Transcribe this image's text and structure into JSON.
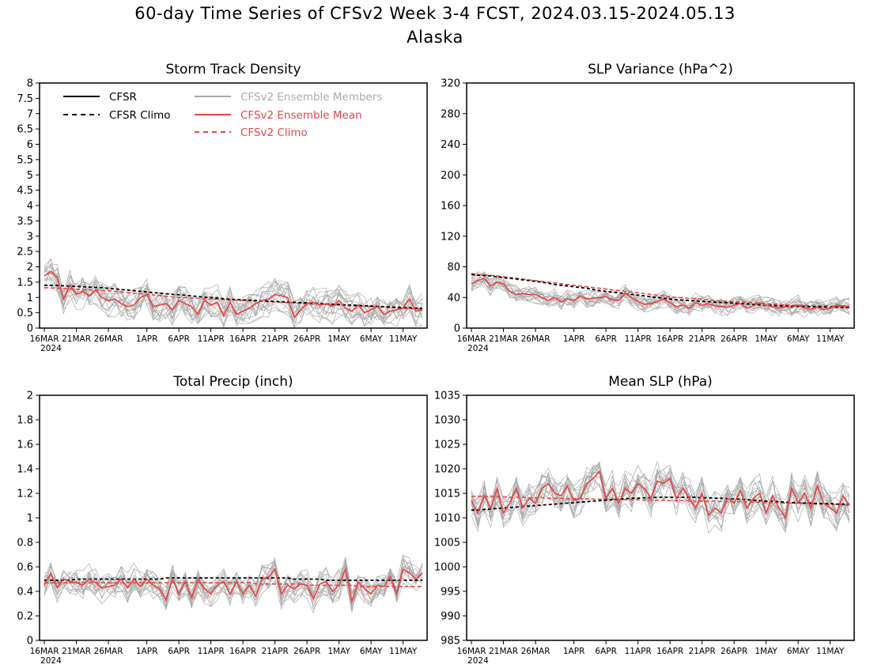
{
  "title_line1": "60-day Time Series of CFSv2 Week 3-4 FCST, 2024.03.15-2024.05.13",
  "title_line2": "Alaska",
  "x_axis": {
    "tick_labels": [
      "16MAR",
      "21MAR",
      "26MAR",
      "1APR",
      "6APR",
      "11APR",
      "16APR",
      "21APR",
      "26APR",
      "1MAY",
      "6MAY",
      "11MAY"
    ],
    "tick_days": [
      1,
      6,
      11,
      17,
      22,
      27,
      32,
      37,
      42,
      47,
      52,
      57
    ],
    "year_label": "2024",
    "n_days": 60
  },
  "legend": {
    "cfsr": "CFSR",
    "cfsr_climo": "CFSR Climo",
    "members": "CFSv2 Ensemble Members",
    "ens_mean": "CFSv2 Ensemble Mean",
    "cfsv2_climo": "CFSv2 Climo"
  },
  "colors": {
    "cfsr": "#000000",
    "cfsr_climo": "#000000",
    "members": "#aaaaaa",
    "ens_mean": "#e84545",
    "cfsv2_climo": "#e84545"
  },
  "chart_data": [
    {
      "type": "line",
      "title": "Storm Track Density",
      "ylim": [
        0,
        8
      ],
      "yticks": [
        0,
        0.5,
        1,
        1.5,
        2,
        2.5,
        3,
        3.5,
        4,
        4.5,
        5,
        5.5,
        6,
        6.5,
        7,
        7.5,
        8
      ],
      "ytick_labels": [
        "0",
        "0.5",
        "1",
        "1.5",
        "2",
        "2.5",
        "3",
        "3.5",
        "4",
        "4.5",
        "5",
        "5.5",
        "6",
        "6.5",
        "7",
        "7.5",
        "8"
      ],
      "cfsr_climo": [
        1.4,
        1.4,
        1.39,
        1.38,
        1.37,
        1.36,
        1.35,
        1.34,
        1.33,
        1.32,
        1.3,
        1.28,
        1.26,
        1.24,
        1.22,
        1.2,
        1.18,
        1.16,
        1.14,
        1.12,
        1.1,
        1.09,
        1.07,
        1.05,
        1.03,
        1.01,
        1.0,
        0.98,
        0.96,
        0.94,
        0.93,
        0.92,
        0.91,
        0.9,
        0.89,
        0.88,
        0.87,
        0.86,
        0.85,
        0.84,
        0.83,
        0.82,
        0.81,
        0.8,
        0.79,
        0.78,
        0.77,
        0.76,
        0.75,
        0.74,
        0.73,
        0.72,
        0.71,
        0.7,
        0.69,
        0.68,
        0.67,
        0.66,
        0.65,
        0.64
      ],
      "cfsv2_climo": [
        1.32,
        1.31,
        1.3,
        1.29,
        1.28,
        1.27,
        1.26,
        1.25,
        1.24,
        1.23,
        1.22,
        1.2,
        1.18,
        1.16,
        1.14,
        1.12,
        1.1,
        1.08,
        1.06,
        1.04,
        1.02,
        1.0,
        0.99,
        0.98,
        0.97,
        0.96,
        0.95,
        0.94,
        0.93,
        0.92,
        0.91,
        0.9,
        0.89,
        0.88,
        0.87,
        0.86,
        0.85,
        0.84,
        0.83,
        0.82,
        0.81,
        0.8,
        0.79,
        0.78,
        0.77,
        0.76,
        0.75,
        0.74,
        0.73,
        0.72,
        0.71,
        0.7,
        0.69,
        0.68,
        0.67,
        0.66,
        0.65,
        0.64,
        0.63,
        0.62
      ],
      "ens_mean": [
        1.7,
        1.85,
        1.65,
        0.95,
        1.4,
        1.1,
        1.2,
        1.05,
        1.25,
        1.0,
        0.9,
        0.95,
        0.8,
        0.7,
        0.75,
        1.0,
        1.1,
        0.7,
        0.75,
        0.8,
        0.6,
        0.9,
        0.8,
        0.7,
        0.45,
        0.9,
        0.75,
        0.85,
        0.4,
        0.85,
        0.45,
        0.55,
        0.65,
        0.8,
        0.9,
        0.95,
        1.1,
        1.05,
        1.0,
        0.35,
        0.6,
        0.8,
        0.85,
        0.75,
        0.8,
        0.7,
        0.9,
        0.65,
        0.55,
        0.75,
        0.5,
        0.6,
        0.7,
        0.45,
        0.55,
        0.6,
        0.65,
        0.95,
        0.55,
        0.6
      ],
      "spread": 0.45
    },
    {
      "type": "line",
      "title": "SLP Variance (hPa^2)",
      "ylim": [
        0,
        320
      ],
      "yticks": [
        0,
        40,
        80,
        120,
        160,
        200,
        240,
        280,
        320
      ],
      "ytick_labels": [
        "0",
        "40",
        "80",
        "120",
        "160",
        "200",
        "240",
        "280",
        "320"
      ],
      "cfsr_climo": [
        70,
        69,
        68.5,
        68,
        67,
        66,
        65,
        64,
        63,
        62,
        61,
        60,
        58.5,
        57,
        56,
        55,
        54,
        53,
        52,
        50.5,
        49,
        48,
        47,
        46,
        45,
        44,
        43,
        42,
        41,
        40,
        39,
        38,
        37,
        36.5,
        36,
        35.5,
        35,
        34.5,
        34,
        33.5,
        33,
        32.5,
        32,
        31.5,
        31,
        30.5,
        30,
        29.5,
        29,
        28.8,
        28.6,
        28.4,
        28.2,
        28,
        27.8,
        27.6,
        27.4,
        27.2,
        27,
        27
      ],
      "cfsv2_climo": [
        71,
        70,
        69.5,
        69,
        68,
        67,
        66,
        65,
        64,
        63,
        62,
        61,
        60,
        59,
        58,
        57,
        56,
        55,
        54,
        53,
        52,
        51,
        50,
        49,
        48,
        47,
        46,
        45,
        44,
        43,
        42,
        41,
        40,
        39.5,
        39,
        38.5,
        38,
        37,
        36,
        35.5,
        35,
        34.5,
        34,
        33.5,
        33,
        32.5,
        32,
        31.5,
        31,
        30.5,
        30,
        29.8,
        29.6,
        29.4,
        29.2,
        29,
        28.8,
        28.6,
        28.4,
        28
      ],
      "ens_mean": [
        58,
        62,
        65,
        55,
        60,
        58,
        48,
        44,
        45,
        44,
        44,
        40,
        36,
        40,
        34,
        38,
        36,
        42,
        38,
        39,
        40,
        41,
        37,
        36,
        46,
        40,
        35,
        31,
        32,
        35,
        38,
        33,
        28,
        30,
        26,
        33,
        30,
        32,
        29,
        28,
        27,
        30,
        32,
        26,
        29,
        33,
        30,
        28,
        26,
        28,
        27,
        30,
        26,
        25,
        27,
        24,
        26,
        30,
        29,
        28
      ],
      "spread": 10
    },
    {
      "type": "line",
      "title": "Total Precip (inch)",
      "ylim": [
        0,
        2
      ],
      "yticks": [
        0,
        0.2,
        0.4,
        0.6,
        0.8,
        1,
        1.2,
        1.4,
        1.6,
        1.8,
        2
      ],
      "ytick_labels": [
        "0",
        "0.2",
        "0.4",
        "0.6",
        "0.8",
        "1",
        "1.2",
        "1.4",
        "1.6",
        "1.8",
        "2"
      ],
      "cfsr_climo": [
        0.49,
        0.49,
        0.49,
        0.49,
        0.49,
        0.5,
        0.5,
        0.5,
        0.5,
        0.5,
        0.5,
        0.5,
        0.5,
        0.5,
        0.5,
        0.5,
        0.5,
        0.5,
        0.5,
        0.51,
        0.51,
        0.51,
        0.51,
        0.51,
        0.51,
        0.51,
        0.51,
        0.51,
        0.51,
        0.51,
        0.51,
        0.51,
        0.51,
        0.51,
        0.51,
        0.51,
        0.51,
        0.51,
        0.51,
        0.5,
        0.5,
        0.5,
        0.5,
        0.5,
        0.49,
        0.49,
        0.49,
        0.49,
        0.49,
        0.49,
        0.49,
        0.49,
        0.49,
        0.49,
        0.49,
        0.49,
        0.49,
        0.49,
        0.49,
        0.49
      ],
      "cfsv2_climo": [
        0.47,
        0.47,
        0.47,
        0.47,
        0.47,
        0.47,
        0.47,
        0.47,
        0.47,
        0.47,
        0.47,
        0.47,
        0.47,
        0.47,
        0.47,
        0.47,
        0.47,
        0.47,
        0.47,
        0.47,
        0.47,
        0.47,
        0.47,
        0.47,
        0.47,
        0.47,
        0.47,
        0.47,
        0.47,
        0.47,
        0.47,
        0.47,
        0.47,
        0.46,
        0.46,
        0.46,
        0.46,
        0.46,
        0.46,
        0.46,
        0.46,
        0.45,
        0.45,
        0.45,
        0.45,
        0.45,
        0.45,
        0.45,
        0.45,
        0.44,
        0.44,
        0.44,
        0.44,
        0.44,
        0.44,
        0.44,
        0.44,
        0.44,
        0.44,
        0.44
      ],
      "ens_mean": [
        0.45,
        0.55,
        0.43,
        0.5,
        0.48,
        0.47,
        0.45,
        0.5,
        0.47,
        0.43,
        0.44,
        0.45,
        0.5,
        0.43,
        0.5,
        0.44,
        0.5,
        0.45,
        0.42,
        0.33,
        0.5,
        0.38,
        0.48,
        0.35,
        0.5,
        0.42,
        0.38,
        0.45,
        0.48,
        0.38,
        0.48,
        0.38,
        0.45,
        0.36,
        0.5,
        0.52,
        0.58,
        0.38,
        0.45,
        0.42,
        0.46,
        0.45,
        0.34,
        0.46,
        0.48,
        0.4,
        0.45,
        0.58,
        0.32,
        0.48,
        0.42,
        0.38,
        0.45,
        0.44,
        0.52,
        0.38,
        0.58,
        0.55,
        0.5,
        0.55
      ],
      "spread": 0.1
    },
    {
      "type": "line",
      "title": "Mean SLP (hPa)",
      "ylim": [
        985,
        1035
      ],
      "yticks": [
        985,
        990,
        995,
        1000,
        1005,
        1010,
        1015,
        1020,
        1025,
        1030,
        1035
      ],
      "ytick_labels": [
        "985",
        "990",
        "995",
        "1000",
        "1005",
        "1010",
        "1015",
        "1020",
        "1025",
        "1030",
        "1035"
      ],
      "cfsr_climo": [
        1011.6,
        1011.6,
        1011.7,
        1011.8,
        1011.9,
        1012.0,
        1012.1,
        1012.2,
        1012.3,
        1012.4,
        1012.5,
        1012.6,
        1012.7,
        1012.8,
        1012.9,
        1013.0,
        1013.1,
        1013.2,
        1013.3,
        1013.4,
        1013.5,
        1013.6,
        1013.7,
        1013.8,
        1013.9,
        1014.0,
        1014.0,
        1014.1,
        1014.1,
        1014.2,
        1014.2,
        1014.2,
        1014.2,
        1014.2,
        1014.2,
        1014.2,
        1014.1,
        1014.1,
        1014.0,
        1014.0,
        1013.9,
        1013.8,
        1013.8,
        1013.7,
        1013.6,
        1013.5,
        1013.4,
        1013.4,
        1013.3,
        1013.2,
        1013.1,
        1013.1,
        1013.0,
        1013.0,
        1012.9,
        1012.9,
        1012.9,
        1012.8,
        1012.8,
        1012.8
      ],
      "cfsv2_climo": [
        1014.4,
        1014.4,
        1014.4,
        1014.3,
        1014.3,
        1014.3,
        1014.2,
        1014.2,
        1014.2,
        1014.1,
        1014.1,
        1014.1,
        1014.0,
        1014.0,
        1014.0,
        1013.9,
        1013.9,
        1013.9,
        1013.9,
        1013.8,
        1013.8,
        1013.8,
        1013.8,
        1013.7,
        1013.7,
        1013.7,
        1013.7,
        1013.6,
        1013.6,
        1013.6,
        1013.6,
        1013.5,
        1013.5,
        1013.5,
        1013.5,
        1013.4,
        1013.4,
        1013.4,
        1013.4,
        1013.3,
        1013.3,
        1013.3,
        1013.3,
        1013.2,
        1013.2,
        1013.2,
        1013.1,
        1013.1,
        1013.1,
        1013.0,
        1013.0,
        1013.0,
        1012.9,
        1012.9,
        1012.8,
        1012.8,
        1012.7,
        1012.7,
        1012.6,
        1012.6
      ],
      "ens_mean": [
        1013.5,
        1011.0,
        1014.5,
        1012.0,
        1016.0,
        1011.0,
        1013.0,
        1016.0,
        1012.0,
        1014.0,
        1013.0,
        1016.0,
        1017.0,
        1015.0,
        1014.5,
        1016.5,
        1013.5,
        1014.0,
        1017.0,
        1018.0,
        1019.5,
        1014.0,
        1016.0,
        1013.0,
        1016.0,
        1015.0,
        1017.0,
        1016.0,
        1014.0,
        1017.5,
        1017.0,
        1018.0,
        1014.0,
        1016.0,
        1014.0,
        1012.0,
        1015.0,
        1010.5,
        1012.0,
        1011.0,
        1014.0,
        1013.0,
        1015.5,
        1012.0,
        1014.0,
        1015.0,
        1011.0,
        1014.5,
        1012.0,
        1010.0,
        1016.0,
        1013.0,
        1015.0,
        1012.0,
        1016.5,
        1013.0,
        1012.0,
        1011.0,
        1014.5,
        1012.5
      ],
      "spread": 3.2
    }
  ]
}
